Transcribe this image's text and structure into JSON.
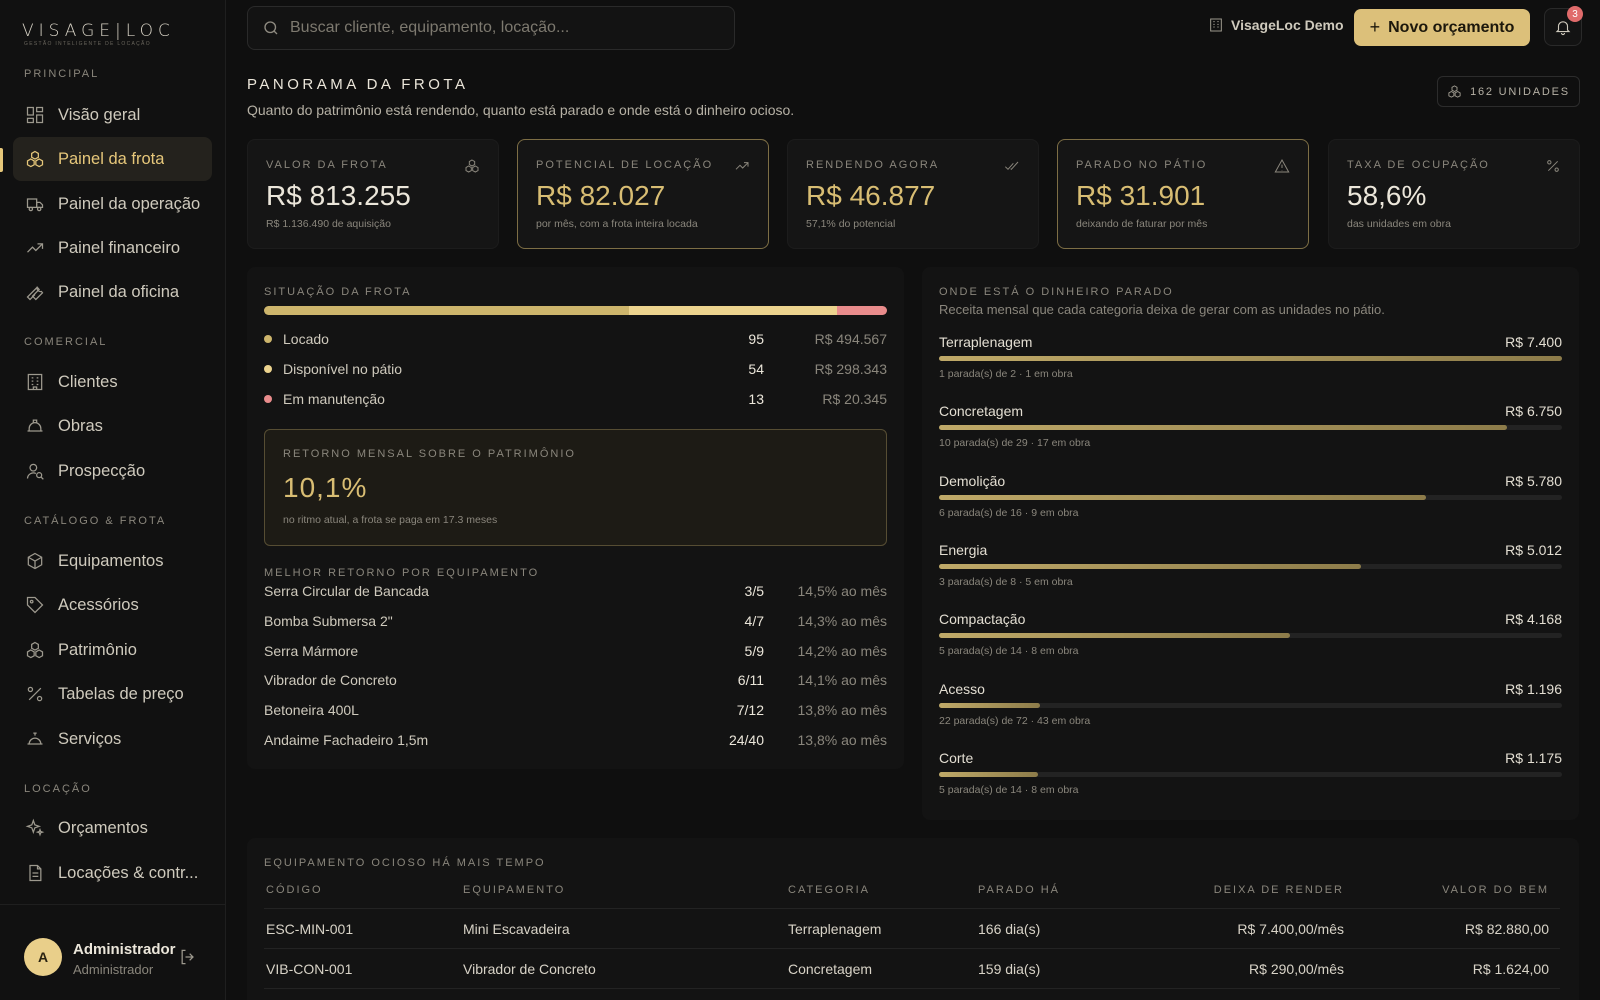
{
  "brand": {
    "name": "VISAGE|LOC",
    "tagline": "GESTÃO INTELIGENTE DE LOCAÇÃO"
  },
  "sidebar": {
    "sections": [
      {
        "label": "PRINCIPAL",
        "items": [
          {
            "label": "Visão geral",
            "icon": "grid-icon"
          },
          {
            "label": "Painel da frota",
            "icon": "boxes-icon",
            "active": true
          },
          {
            "label": "Painel da operação",
            "icon": "truck-icon"
          },
          {
            "label": "Painel financeiro",
            "icon": "trending-up-icon"
          },
          {
            "label": "Painel da oficina",
            "icon": "wrench-icon"
          }
        ]
      },
      {
        "label": "COMERCIAL",
        "items": [
          {
            "label": "Clientes",
            "icon": "building-icon"
          },
          {
            "label": "Obras",
            "icon": "hardhat-icon"
          },
          {
            "label": "Prospecção",
            "icon": "user-search-icon"
          }
        ]
      },
      {
        "label": "CATÁLOGO & FROTA",
        "items": [
          {
            "label": "Equipamentos",
            "icon": "package-icon"
          },
          {
            "label": "Acessórios",
            "icon": "tag-icon"
          },
          {
            "label": "Patrimônio",
            "icon": "boxes-icon"
          },
          {
            "label": "Tabelas de preço",
            "icon": "percent-icon"
          },
          {
            "label": "Serviços",
            "icon": "bell-service-icon"
          }
        ]
      },
      {
        "label": "LOCAÇÃO",
        "items": [
          {
            "label": "Orçamentos",
            "icon": "sparkles-icon"
          },
          {
            "label": "Locações & contr...",
            "icon": "file-icon"
          }
        ]
      }
    ],
    "user": {
      "initial": "A",
      "name": "Administrador",
      "role": "Administrador"
    }
  },
  "topbar": {
    "search_placeholder": "Buscar cliente, equipamento, locação...",
    "org_name": "VisageLoc Demo",
    "new_button": "Novo orçamento",
    "notifications": "3"
  },
  "page": {
    "title": "PANORAMA DA FROTA",
    "subtitle": "Quanto do patrimônio está rendendo, quanto está parado e onde está o dinheiro ocioso.",
    "units_badge": "162 UNIDADES"
  },
  "kpis": [
    {
      "label": "VALOR DA FROTA",
      "value": "R$ 813.255",
      "sub": "R$ 1.136.490 de aquisição",
      "icon": "boxes-icon",
      "highlight": false,
      "color": "#ebe6da"
    },
    {
      "label": "POTENCIAL DE LOCAÇÃO",
      "value": "R$ 82.027",
      "sub": "por mês, com a frota inteira locada",
      "icon": "trending-up-icon",
      "highlight": true,
      "color": "#d8bd73"
    },
    {
      "label": "RENDENDO AGORA",
      "value": "R$ 46.877",
      "sub": "57,1% do potencial",
      "icon": "check-check-icon",
      "highlight": false,
      "color": "#d8bd73"
    },
    {
      "label": "PARADO NO PÁTIO",
      "value": "R$ 31.901",
      "sub": "deixando de faturar por mês",
      "icon": "alert-triangle-icon",
      "highlight": true,
      "color": "#d8bd73"
    },
    {
      "label": "TAXA DE OCUPAÇÃO",
      "value": "58,6%",
      "sub": "das unidades em obra",
      "icon": "percent-icon",
      "highlight": false,
      "color": "#ebe6da"
    }
  ],
  "situacao": {
    "title": "SITUAÇÃO DA FROTA",
    "statuses": [
      {
        "label": "Locado",
        "count": "95",
        "value": "R$ 494.567",
        "units": 95,
        "color": "#cdb56c"
      },
      {
        "label": "Disponível no pátio",
        "count": "54",
        "value": "R$ 298.343",
        "units": 54,
        "color": "#ecd38e"
      },
      {
        "label": "Em manutenção",
        "count": "13",
        "value": "R$ 20.345",
        "units": 13,
        "color": "#e98c8c"
      }
    ],
    "roi": {
      "label": "RETORNO MENSAL SOBRE O PATRIMÔNIO",
      "value": "10,1%",
      "sub": "no ritmo atual, a frota se paga em 17.3 meses"
    },
    "best_title": "MELHOR RETORNO POR EQUIPAMENTO",
    "best": [
      {
        "name": "Serra Circular de Bancada",
        "ratio": "3/5",
        "rate": "14,5% ao mês"
      },
      {
        "name": "Bomba Submersa 2\"",
        "ratio": "4/7",
        "rate": "14,3% ao mês"
      },
      {
        "name": "Serra Mármore",
        "ratio": "5/9",
        "rate": "14,2% ao mês"
      },
      {
        "name": "Vibrador de Concreto",
        "ratio": "6/11",
        "rate": "14,1% ao mês"
      },
      {
        "name": "Betoneira 400L",
        "ratio": "7/12",
        "rate": "13,8% ao mês"
      },
      {
        "name": "Andaime Fachadeiro 1,5m",
        "ratio": "24/40",
        "rate": "13,8% ao mês"
      }
    ]
  },
  "parado": {
    "title": "ONDE ESTÁ O DINHEIRO PARADO",
    "subtitle": "Receita mensal que cada categoria deixa de gerar com as unidades no pátio.",
    "categories": [
      {
        "name": "Terraplenagem",
        "value": "R$ 7.400",
        "amount": 7400,
        "sub": "1 parada(s) de 2 · 1 em obra"
      },
      {
        "name": "Concretagem",
        "value": "R$ 6.750",
        "amount": 6750,
        "sub": "10 parada(s) de 29 · 17 em obra"
      },
      {
        "name": "Demolição",
        "value": "R$ 5.780",
        "amount": 5780,
        "sub": "6 parada(s) de 16 · 9 em obra"
      },
      {
        "name": "Energia",
        "value": "R$ 5.012",
        "amount": 5012,
        "sub": "3 parada(s) de 8 · 5 em obra"
      },
      {
        "name": "Compactação",
        "value": "R$ 4.168",
        "amount": 4168,
        "sub": "5 parada(s) de 14 · 8 em obra"
      },
      {
        "name": "Acesso",
        "value": "R$ 1.196",
        "amount": 1196,
        "sub": "22 parada(s) de 72 · 43 em obra"
      },
      {
        "name": "Corte",
        "value": "R$ 1.175",
        "amount": 1175,
        "sub": "5 parada(s) de 14 · 8 em obra"
      }
    ]
  },
  "ocioso": {
    "title": "EQUIPAMENTO OCIOSO HÁ MAIS TEMPO",
    "columns": [
      "CÓDIGO",
      "EQUIPAMENTO",
      "CATEGORIA",
      "PARADO HÁ",
      "DEIXA DE RENDER",
      "VALOR DO BEM"
    ],
    "rows": [
      [
        "ESC-MIN-001",
        "Mini Escavadeira",
        "Terraplenagem",
        "166 dia(s)",
        "R$ 7.400,00/mês",
        "R$ 82.880,00"
      ],
      [
        "VIB-CON-001",
        "Vibrador de Concreto",
        "Concretagem",
        "159 dia(s)",
        "R$ 290,00/mês",
        "R$ 1.624,00"
      ]
    ]
  }
}
